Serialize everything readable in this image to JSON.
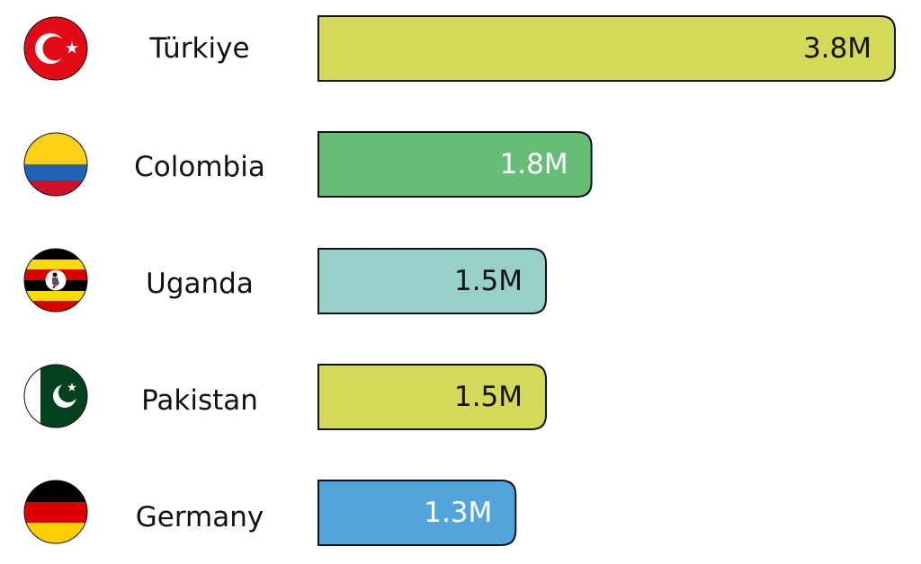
{
  "chart_data": {
    "type": "bar",
    "orientation": "horizontal",
    "title": "",
    "xlabel": "",
    "ylabel": "",
    "grid": false,
    "xlim": [
      0,
      3.8
    ],
    "categories": [
      "Türkiye",
      "Colombia",
      "Uganda",
      "Pakistan",
      "Germany"
    ],
    "values": [
      3.8,
      1.8,
      1.5,
      1.5,
      1.3
    ],
    "value_labels": [
      "3.8M",
      "1.8M",
      "1.5M",
      "1.5M",
      "1.3M"
    ],
    "bar_colors": [
      "#d4d95a",
      "#66bd76",
      "#96d0c9",
      "#d4d95a",
      "#52a5db"
    ],
    "value_label_colors": [
      "#111111",
      "#ffffff",
      "#111111",
      "#111111",
      "#ffffff"
    ],
    "flag_icons": [
      "turkey-flag-icon",
      "colombia-flag-icon",
      "uganda-flag-icon",
      "pakistan-flag-icon",
      "germany-flag-icon"
    ]
  }
}
